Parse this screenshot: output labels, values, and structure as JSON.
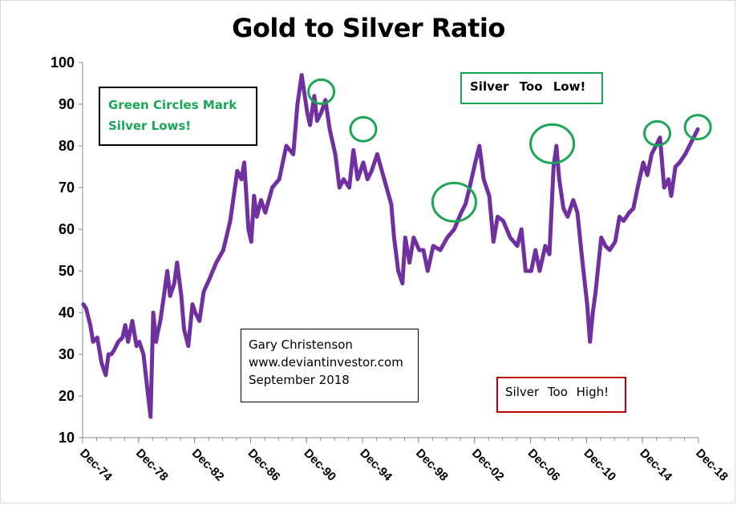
{
  "chart_data": {
    "type": "line",
    "title": "Gold to Silver Ratio",
    "xlabel": "",
    "ylabel": "",
    "ylim": [
      10,
      100
    ],
    "yticks": [
      10,
      20,
      30,
      40,
      50,
      60,
      70,
      80,
      90,
      100
    ],
    "xlim": [
      1974.95,
      2018.95
    ],
    "xtick_labels": [
      "Dec-74",
      "Dec-78",
      "Dec-82",
      "Dec-86",
      "Dec-90",
      "Dec-94",
      "Dec-98",
      "Dec-02",
      "Dec-06",
      "Dec-10",
      "Dec-14",
      "Dec-18"
    ],
    "grid": false,
    "legend": "none",
    "line_color": "#7030a0",
    "series": [
      {
        "x": [
          1975.0,
          1975.2,
          1975.5,
          1975.7,
          1976.0,
          1976.3,
          1976.6,
          1976.8,
          1977.0,
          1977.2,
          1977.5,
          1977.8,
          1978.0,
          1978.2,
          1978.5,
          1978.8,
          1979.0,
          1979.3,
          1979.5,
          1979.8,
          1980.0,
          1980.2,
          1980.3,
          1980.5,
          1980.8,
          1981.0,
          1981.2,
          1981.5,
          1981.7,
          1982.0,
          1982.2,
          1982.5,
          1982.8,
          1983.0,
          1983.3,
          1983.6,
          1984.0,
          1984.5,
          1985.0,
          1985.5,
          1986.0,
          1986.3,
          1986.5,
          1986.8,
          1987.0,
          1987.2,
          1987.4,
          1987.7,
          1988.0,
          1988.5,
          1989.0,
          1989.5,
          1990.0,
          1990.3,
          1990.6,
          1991.0,
          1991.2,
          1991.5,
          1991.7,
          1992.0,
          1992.3,
          1992.6,
          1993.0,
          1993.3,
          1993.6,
          1994.0,
          1994.3,
          1994.6,
          1995.0,
          1995.3,
          1995.6,
          1996.0,
          1996.5,
          1997.0,
          1997.2,
          1997.5,
          1997.8,
          1998.0,
          1998.3,
          1998.6,
          1999.0,
          1999.3,
          1999.6,
          2000.0,
          2000.5,
          2001.0,
          2001.5,
          2002.0,
          2002.3,
          2002.6,
          2003.0,
          2003.3,
          2003.6,
          2004.0,
          2004.3,
          2004.6,
          2005.0,
          2005.5,
          2006.0,
          2006.3,
          2006.6,
          2007.0,
          2007.3,
          2007.6,
          2008.0,
          2008.3,
          2008.6,
          2008.8,
          2009.0,
          2009.3,
          2009.6,
          2010.0,
          2010.3,
          2010.6,
          2010.8,
          2011.0,
          2011.2,
          2011.4,
          2011.6,
          2012.0,
          2012.3,
          2012.6,
          2013.0,
          2013.3,
          2013.6,
          2014.0,
          2014.3,
          2014.6,
          2015.0,
          2015.3,
          2015.6,
          2015.9,
          2016.2,
          2016.5,
          2016.8,
          2017.0,
          2017.3,
          2017.6,
          2018.0,
          2018.3,
          2018.6,
          2018.9
        ],
        "y": [
          42,
          41,
          37,
          33,
          34,
          28,
          25,
          30,
          30,
          31,
          33,
          34,
          37,
          33,
          38,
          32,
          33,
          30,
          24,
          15,
          40,
          33,
          35,
          38,
          45,
          50,
          44,
          47,
          52,
          44,
          36,
          32,
          42,
          40,
          38,
          45,
          48,
          52,
          55,
          62,
          74,
          72,
          76,
          60,
          57,
          68,
          63,
          67,
          64,
          70,
          72,
          80,
          78,
          90,
          97,
          88,
          85,
          92,
          86,
          88,
          91,
          84,
          78,
          70,
          72,
          70,
          79,
          72,
          76,
          72,
          74,
          78,
          72,
          66,
          58,
          50,
          47,
          58,
          52,
          58,
          55,
          55,
          50,
          56,
          55,
          58,
          60,
          64,
          66,
          70,
          76,
          80,
          72,
          68,
          57,
          63,
          62,
          58,
          56,
          60,
          50,
          50,
          55,
          50,
          56,
          54,
          75,
          80,
          72,
          65,
          63,
          67,
          64,
          54,
          48,
          42,
          33,
          40,
          45,
          58,
          56,
          55,
          57,
          63,
          62,
          64,
          65,
          70,
          76,
          73,
          78,
          80,
          82,
          70,
          72,
          68,
          75,
          76,
          78,
          80,
          82,
          84
        ]
      }
    ],
    "circles": [
      {
        "x": 1992.0,
        "y": 93
      },
      {
        "x": 1995.0,
        "y": 84
      },
      {
        "x": 2001.5,
        "y": 66.5
      },
      {
        "x": 2008.5,
        "y": 80.5
      },
      {
        "x": 2016.0,
        "y": 83
      },
      {
        "x": 2018.9,
        "y": 84.5
      }
    ],
    "circle_color": "#1aa655"
  },
  "annotations": {
    "green_circles": [
      "Green Circles Mark",
      "Silver Lows!"
    ],
    "silver_too_low": "Silver  Too  Low!",
    "silver_too_high": "Silver  Too  High!",
    "credit": [
      "Gary Christenson",
      "www.deviantinvestor.com",
      "September 2018"
    ]
  }
}
